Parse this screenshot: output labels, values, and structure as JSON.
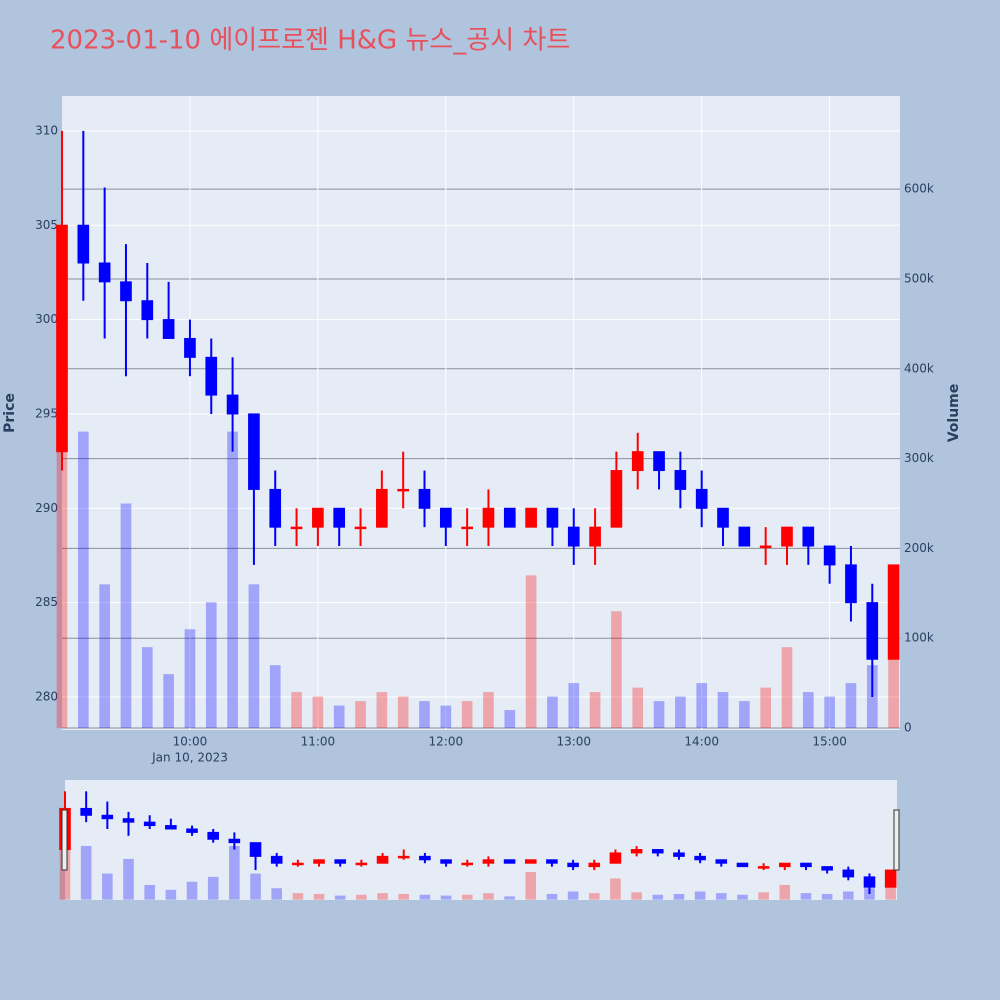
{
  "chart_data": {
    "type": "candlestick",
    "title": "2023-01-10 에이프로젠 H&G 뉴스_공시 차트",
    "y_title": "Price",
    "y2_title": "Volume",
    "x": [
      "2023-01-10 09:00",
      "2023-01-10 09:10",
      "2023-01-10 09:20",
      "2023-01-10 09:30",
      "2023-01-10 09:40",
      "2023-01-10 09:50",
      "2023-01-10 10:00",
      "2023-01-10 10:10",
      "2023-01-10 10:20",
      "2023-01-10 10:30",
      "2023-01-10 10:40",
      "2023-01-10 10:50",
      "2023-01-10 11:00",
      "2023-01-10 11:10",
      "2023-01-10 11:20",
      "2023-01-10 11:30",
      "2023-01-10 11:40",
      "2023-01-10 11:50",
      "2023-01-10 12:00",
      "2023-01-10 12:10",
      "2023-01-10 12:20",
      "2023-01-10 12:30",
      "2023-01-10 12:40",
      "2023-01-10 12:50",
      "2023-01-10 13:00",
      "2023-01-10 13:10",
      "2023-01-10 13:20",
      "2023-01-10 13:30",
      "2023-01-10 13:40",
      "2023-01-10 13:50",
      "2023-01-10 14:00",
      "2023-01-10 14:10",
      "2023-01-10 14:20",
      "2023-01-10 14:30",
      "2023-01-10 14:40",
      "2023-01-10 14:50",
      "2023-01-10 15:00",
      "2023-01-10 15:10",
      "2023-01-10 15:20",
      "2023-01-10 15:30"
    ],
    "open": [
      293,
      305,
      303,
      302,
      301,
      300,
      299,
      298,
      296,
      295,
      291,
      289,
      289,
      290,
      289,
      289,
      291,
      291,
      290,
      289,
      289,
      290,
      289,
      290,
      289,
      288,
      289,
      292,
      293,
      292,
      291,
      290,
      289,
      288,
      288,
      289,
      288,
      287,
      285,
      282
    ],
    "high": [
      310,
      310,
      307,
      304,
      303,
      302,
      300,
      299,
      298,
      295,
      292,
      290,
      290,
      290,
      290,
      292,
      293,
      292,
      290,
      290,
      291,
      290,
      290,
      290,
      290,
      290,
      293,
      294,
      293,
      293,
      292,
      290,
      289,
      289,
      289,
      289,
      288,
      288,
      286,
      287
    ],
    "low": [
      292,
      301,
      299,
      297,
      299,
      299,
      297,
      295,
      293,
      287,
      288,
      288,
      288,
      288,
      288,
      289,
      290,
      289,
      288,
      288,
      288,
      289,
      289,
      288,
      287,
      287,
      289,
      291,
      291,
      290,
      289,
      288,
      288,
      287,
      287,
      287,
      286,
      284,
      280,
      282
    ],
    "close": [
      305,
      303,
      302,
      301,
      300,
      299,
      298,
      296,
      295,
      291,
      289,
      289,
      290,
      289,
      289,
      291,
      291,
      290,
      289,
      289,
      290,
      289,
      290,
      289,
      288,
      289,
      292,
      293,
      292,
      291,
      290,
      289,
      288,
      288,
      289,
      288,
      287,
      285,
      282,
      287
    ],
    "volume": [
      450000,
      330000,
      160000,
      250000,
      90000,
      60000,
      110000,
      140000,
      330000,
      160000,
      70000,
      40000,
      35000,
      25000,
      30000,
      40000,
      35000,
      30000,
      25000,
      30000,
      40000,
      20000,
      170000,
      35000,
      50000,
      40000,
      130000,
      45000,
      30000,
      35000,
      50000,
      40000,
      30000,
      45000,
      90000,
      40000,
      35000,
      50000,
      70000,
      180000
    ],
    "increasing_color": "#ff0000",
    "decreasing_color": "#0000ff",
    "xlim": [
      "2023-01-10 09:00",
      "2023-01-10 15:33"
    ],
    "xticks": [
      {
        "value": "2023-01-10 10:00",
        "label": "10:00"
      },
      {
        "value": "2023-01-10 11:00",
        "label": "11:00"
      },
      {
        "value": "2023-01-10 12:00",
        "label": "12:00"
      },
      {
        "value": "2023-01-10 13:00",
        "label": "13:00"
      },
      {
        "value": "2023-01-10 14:00",
        "label": "14:00"
      },
      {
        "value": "2023-01-10 15:00",
        "label": "15:00"
      }
    ],
    "x_date_label": "Jan 10, 2023",
    "ylim": [
      278.25,
      311.85
    ],
    "yticks": [
      280,
      285,
      290,
      295,
      300,
      305,
      310
    ],
    "y2lim": [
      -2200,
      703700
    ],
    "y2ticks": [
      0,
      {
        "value": 100000,
        "label": "100k"
      },
      {
        "value": 200000,
        "label": "200k"
      },
      {
        "value": 300000,
        "label": "300k"
      },
      {
        "value": 400000,
        "label": "400k"
      },
      {
        "value": 500000,
        "label": "500k"
      },
      {
        "value": 600000,
        "label": "600k"
      }
    ],
    "grid": true,
    "rangeslider": true
  }
}
